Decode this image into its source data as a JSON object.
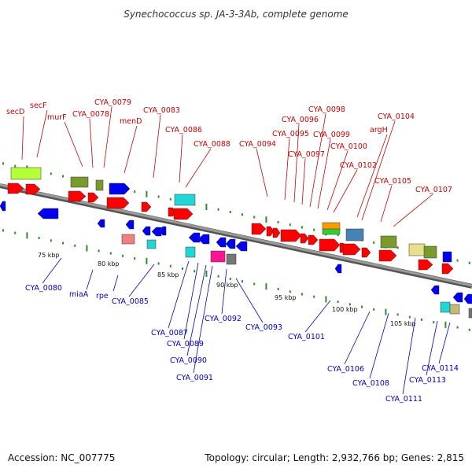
{
  "title": "Synechococcus sp. JA-3-3Ab, complete genome",
  "footer": {
    "accession": "Accession: NC_007775",
    "topology": "Topology: circular; Length: 2,932,766 bp; Genes: 2,815"
  },
  "colors": {
    "forward_label": "#cc0000",
    "reverse_label": "#0000cc",
    "backbone": "#8c8c8c",
    "tick": "#2e8b2e",
    "gene_red": "#ff0000",
    "gene_blue": "#0000ee",
    "gene_lime": "#b5ff3a",
    "gene_olive": "#7a9a2c",
    "gene_cyan": "#22d6d6",
    "gene_pink": "#ff1493",
    "gene_salmon": "#f08080",
    "gene_gray": "#777777",
    "gene_orange": "#ff9900",
    "gene_green": "#33cc33",
    "gene_steelblue": "#4682b4",
    "gene_khaki": "#e8df8a",
    "gene_tan": "#c8b878"
  },
  "scale_labels": [
    "75 kbp",
    "80 kbp",
    "85 kbp",
    "90 kbp",
    "95 kbp",
    "100 kbp",
    "105 kbp"
  ],
  "forward_labels": [
    "secD",
    "secF",
    "murF",
    "CYA_0078",
    "CYA_0079",
    "menD",
    "CYA_0083",
    "CYA_0086",
    "CYA_0088",
    "CYA_0094",
    "CYA_0095",
    "CYA_0096",
    "CYA_0097",
    "CYA_0098",
    "CYA_0099",
    "CYA_0100",
    "CYA_0102",
    "argH",
    "CYA_0104",
    "CYA_0105",
    "CYA_0107"
  ],
  "reverse_labels": [
    "CYA_0080",
    "miaA",
    "rpe",
    "CYA_0085",
    "CYA_0087",
    "CYA_0089",
    "CYA_0090",
    "CYA_0091",
    "CYA_0092",
    "CYA_0093",
    "CYA_0101",
    "CYA_0106",
    "CYA_0108",
    "CYA_0111",
    "CYA_0113",
    "CYA_0114"
  ]
}
